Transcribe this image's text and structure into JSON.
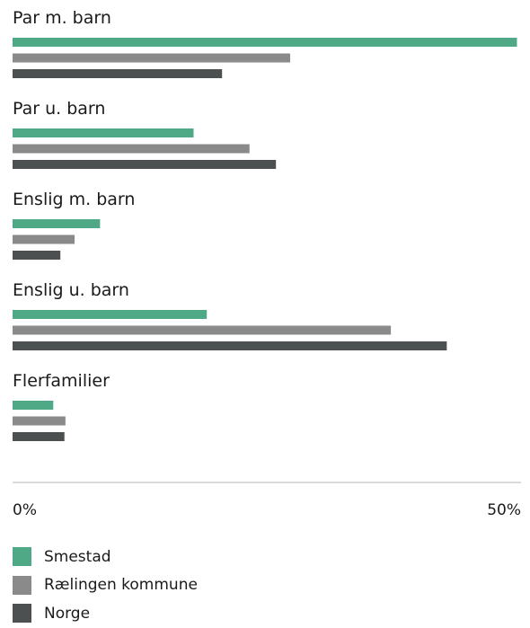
{
  "chart_data": {
    "type": "bar",
    "orientation": "horizontal",
    "categories": [
      "Par m. barn",
      "Par u. barn",
      "Enslig m. barn",
      "Enslig u. barn",
      "Flerfamilier"
    ],
    "series": [
      {
        "name": "Smestad",
        "color": "#4fa987",
        "values": [
          49.6,
          17.8,
          8.6,
          19.1,
          4.0
        ]
      },
      {
        "name": "Rælingen kommune",
        "color": "#8a8a8a",
        "values": [
          27.3,
          23.3,
          6.1,
          37.2,
          5.2
        ]
      },
      {
        "name": "Norge",
        "color": "#4d5051",
        "values": [
          20.6,
          25.9,
          4.7,
          42.7,
          5.1
        ]
      }
    ],
    "xlim": [
      0,
      50
    ],
    "x_tick_labels": [
      "0%",
      "50%"
    ],
    "legend_position": "bottom-left",
    "grid": false
  }
}
